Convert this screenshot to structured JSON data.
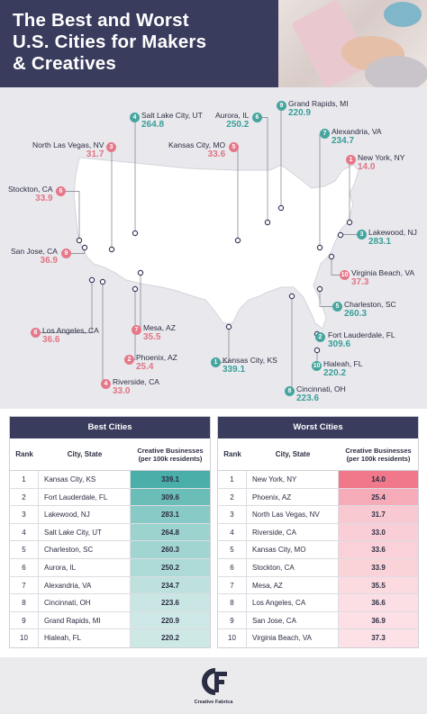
{
  "title": {
    "line1": "The Best and Worst",
    "line2": "U.S. Cities for Makers",
    "line3": "& Creatives"
  },
  "colors": {
    "header": "#3a3c5e",
    "best": "#46a59f",
    "worst": "#e6788a",
    "map_land": "#ffffff",
    "map_bg": "#e9e9ed"
  },
  "chart_data": {
    "type": "table",
    "value_header": "Creative Businesses (per 100k residents)",
    "best": {
      "title": "Best Cities",
      "columns": [
        "Rank",
        "City, State",
        "Creative Businesses\n(per 100k residents)"
      ],
      "rows": [
        {
          "rank": "1",
          "city": "Kansas City, KS",
          "value": "339.1"
        },
        {
          "rank": "2",
          "city": "Fort Lauderdale, FL",
          "value": "309.6"
        },
        {
          "rank": "3",
          "city": "Lakewood, NJ",
          "value": "283.1"
        },
        {
          "rank": "4",
          "city": "Salt Lake City, UT",
          "value": "264.8"
        },
        {
          "rank": "5",
          "city": "Charleston, SC",
          "value": "260.3"
        },
        {
          "rank": "6",
          "city": "Aurora, IL",
          "value": "250.2"
        },
        {
          "rank": "7",
          "city": "Alexandria, VA",
          "value": "234.7"
        },
        {
          "rank": "8",
          "city": "Cincinnati, OH",
          "value": "223.6"
        },
        {
          "rank": "9",
          "city": "Grand Rapids, MI",
          "value": "220.9"
        },
        {
          "rank": "10",
          "city": "Hialeah, FL",
          "value": "220.2"
        }
      ]
    },
    "worst": {
      "title": "Worst Cities",
      "columns": [
        "Rank",
        "City, State",
        "Creative Businesses\n(per 100k residents)"
      ],
      "rows": [
        {
          "rank": "1",
          "city": "New York, NY",
          "value": "14.0"
        },
        {
          "rank": "2",
          "city": "Phoenix, AZ",
          "value": "25.4"
        },
        {
          "rank": "3",
          "city": "North Las Vegas, NV",
          "value": "31.7"
        },
        {
          "rank": "4",
          "city": "Riverside, CA",
          "value": "33.0"
        },
        {
          "rank": "5",
          "city": "Kansas City, MO",
          "value": "33.6"
        },
        {
          "rank": "6",
          "city": "Stockton, CA",
          "value": "33.9"
        },
        {
          "rank": "7",
          "city": "Mesa, AZ",
          "value": "35.5"
        },
        {
          "rank": "8",
          "city": "Los Angeles, CA",
          "value": "36.6"
        },
        {
          "rank": "9",
          "city": "San Jose, CA",
          "value": "36.9"
        },
        {
          "rank": "10",
          "city": "Virginia Beach, VA",
          "value": "37.3"
        }
      ]
    }
  },
  "map_labels": {
    "best": [
      {
        "rank": "1",
        "city": "Kansas City, KS",
        "value": "339.1"
      },
      {
        "rank": "2",
        "city": "Fort Lauderdale, FL",
        "value": "309.6"
      },
      {
        "rank": "3",
        "city": "Lakewood, NJ",
        "value": "283.1"
      },
      {
        "rank": "4",
        "city": "Salt Lake City, UT",
        "value": "264.8"
      },
      {
        "rank": "5",
        "city": "Charleston, SC",
        "value": "260.3"
      },
      {
        "rank": "6",
        "city": "Aurora, IL",
        "value": "250.2"
      },
      {
        "rank": "7",
        "city": "Alexandria, VA",
        "value": "234.7"
      },
      {
        "rank": "8",
        "city": "Cincinnati, OH",
        "value": "223.6"
      },
      {
        "rank": "9",
        "city": "Grand Rapids, MI",
        "value": "220.9"
      },
      {
        "rank": "10",
        "city": "Hialeah, FL",
        "value": "220.2"
      }
    ],
    "worst": [
      {
        "rank": "1",
        "city": "New York, NY",
        "value": "14.0"
      },
      {
        "rank": "2",
        "city": "Phoenix, AZ",
        "value": "25.4"
      },
      {
        "rank": "3",
        "city": "North Las Vegas, NV",
        "value": "31.7"
      },
      {
        "rank": "4",
        "city": "Riverside, CA",
        "value": "33.0"
      },
      {
        "rank": "5",
        "city": "Kansas City, MO",
        "value": "33.6"
      },
      {
        "rank": "6",
        "city": "Stockton, CA",
        "value": "33.9"
      },
      {
        "rank": "7",
        "city": "Mesa, AZ",
        "value": "35.5"
      },
      {
        "rank": "8",
        "city": "Los Angeles, CA",
        "value": "36.6"
      },
      {
        "rank": "9",
        "city": "San Jose, CA",
        "value": "36.9"
      },
      {
        "rank": "10",
        "city": "Virginia Beach, VA",
        "value": "37.3"
      }
    ]
  },
  "footer": {
    "brand": "Creative Fabrica",
    "logo_icon": "creative-fabrica-logo-icon"
  }
}
